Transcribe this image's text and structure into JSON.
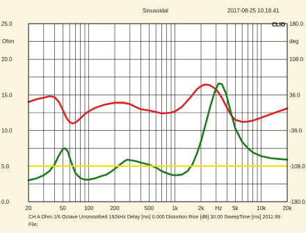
{
  "header": {
    "title": "Sinusoidal",
    "timestamp": "2017-08-25 10.18.41",
    "brand": "CLIO"
  },
  "footer": {
    "line1": "CH A   Ohm   1/6 Octave   Unsmoothed   192kHz   Delay [ms] 0.000   Distortion Rise [dB] 30.00   SweepTime [ms] 2011.99",
    "line2": "File:"
  },
  "colors": {
    "background": "#fbf6df",
    "plot": "#ffffff",
    "grid": "#111111",
    "impedance": "#e02020",
    "phase": "#1e7a1e",
    "reference": "#f0e000"
  },
  "chart_data": {
    "type": "line",
    "title": "Sinusoidal",
    "x_scale": "log",
    "xlim": [
      20,
      20000
    ],
    "x_ticks": [
      {
        "v": 20,
        "label": "20"
      },
      {
        "v": 50,
        "label": "50"
      },
      {
        "v": 100,
        "label": "100"
      },
      {
        "v": 200,
        "label": "200"
      },
      {
        "v": 500,
        "label": "500"
      },
      {
        "v": 1000,
        "label": "1k"
      },
      {
        "v": 2000,
        "label": "2k"
      },
      {
        "v": 3200,
        "label": "Hz"
      },
      {
        "v": 5000,
        "label": "5k"
      },
      {
        "v": 10000,
        "label": "10k"
      },
      {
        "v": 20000,
        "label": "20k"
      }
    ],
    "y_left": {
      "unit": "Ohm",
      "range": [
        0,
        25
      ],
      "ticks": [
        {
          "v": 0,
          "label": "0.0"
        },
        {
          "v": 5,
          "label": "5.0"
        },
        {
          "v": 10,
          "label": "10.0"
        },
        {
          "v": 15,
          "label": "15.0"
        },
        {
          "v": 20,
          "label": "20.0"
        },
        {
          "v": 25,
          "label": "25.0"
        }
      ]
    },
    "y_right": {
      "unit": "deg",
      "range": [
        -180,
        180
      ],
      "ticks": [
        {
          "v": -180,
          "label": "-180.0"
        },
        {
          "v": -108,
          "label": "-108.0"
        },
        {
          "v": -36,
          "label": "-36.0"
        },
        {
          "v": 36,
          "label": "36.0"
        },
        {
          "v": 108,
          "label": "108.0"
        },
        {
          "v": 180,
          "label": "180.0"
        }
      ]
    },
    "grid": true,
    "series": [
      {
        "color": "#e02020",
        "points": [
          [
            20,
            14.0
          ],
          [
            25,
            14.4
          ],
          [
            30,
            14.6
          ],
          [
            35,
            14.8
          ],
          [
            40,
            14.7
          ],
          [
            45,
            14.0
          ],
          [
            50,
            12.9
          ],
          [
            55,
            11.8
          ],
          [
            60,
            11.15
          ],
          [
            65,
            11.0
          ],
          [
            70,
            11.1
          ],
          [
            80,
            11.7
          ],
          [
            90,
            12.3
          ],
          [
            100,
            12.7
          ],
          [
            120,
            13.2
          ],
          [
            150,
            13.6
          ],
          [
            200,
            13.9
          ],
          [
            250,
            13.9
          ],
          [
            300,
            13.7
          ],
          [
            350,
            13.3
          ],
          [
            400,
            13.0
          ],
          [
            500,
            12.8
          ],
          [
            600,
            12.6
          ],
          [
            700,
            12.4
          ],
          [
            800,
            12.45
          ],
          [
            900,
            12.5
          ],
          [
            1000,
            12.7
          ],
          [
            1200,
            13.3
          ],
          [
            1500,
            14.6
          ],
          [
            1800,
            15.8
          ],
          [
            2000,
            16.2
          ],
          [
            2200,
            16.45
          ],
          [
            2500,
            16.4
          ],
          [
            3000,
            15.8
          ],
          [
            3500,
            14.6
          ],
          [
            4000,
            13.2
          ],
          [
            4500,
            12.1
          ],
          [
            5000,
            11.5
          ],
          [
            6000,
            11.2
          ],
          [
            7000,
            11.25
          ],
          [
            8000,
            11.4
          ],
          [
            10000,
            11.8
          ],
          [
            13000,
            12.3
          ],
          [
            16000,
            12.7
          ],
          [
            20000,
            13.1
          ]
        ]
      },
      {
        "color": "#1e7a1e",
        "points": [
          [
            20,
            3.0
          ],
          [
            25,
            3.3
          ],
          [
            30,
            3.7
          ],
          [
            35,
            4.3
          ],
          [
            40,
            5.2
          ],
          [
            45,
            6.5
          ],
          [
            50,
            7.4
          ],
          [
            53,
            7.5
          ],
          [
            57,
            7.1
          ],
          [
            60,
            6.2
          ],
          [
            65,
            5.0
          ],
          [
            70,
            4.0
          ],
          [
            80,
            3.3
          ],
          [
            90,
            3.1
          ],
          [
            100,
            3.1
          ],
          [
            120,
            3.3
          ],
          [
            140,
            3.6
          ],
          [
            160,
            3.8
          ],
          [
            180,
            4.2
          ],
          [
            200,
            4.6
          ],
          [
            230,
            5.2
          ],
          [
            260,
            5.7
          ],
          [
            280,
            5.9
          ],
          [
            300,
            5.85
          ],
          [
            350,
            5.7
          ],
          [
            400,
            5.5
          ],
          [
            500,
            5.2
          ],
          [
            600,
            4.8
          ],
          [
            700,
            4.3
          ],
          [
            800,
            4.0
          ],
          [
            900,
            3.8
          ],
          [
            1000,
            3.7
          ],
          [
            1200,
            3.8
          ],
          [
            1400,
            4.3
          ],
          [
            1600,
            5.3
          ],
          [
            1800,
            6.8
          ],
          [
            2000,
            8.5
          ],
          [
            2300,
            11.2
          ],
          [
            2600,
            13.6
          ],
          [
            2900,
            15.5
          ],
          [
            3200,
            16.6
          ],
          [
            3500,
            16.5
          ],
          [
            3900,
            15.2
          ],
          [
            4300,
            13.2
          ],
          [
            5000,
            10.3
          ],
          [
            6000,
            8.4
          ],
          [
            7000,
            7.5
          ],
          [
            8000,
            6.9
          ],
          [
            10000,
            6.4
          ],
          [
            13000,
            6.1
          ],
          [
            16000,
            6.0
          ],
          [
            20000,
            5.9
          ]
        ]
      },
      {
        "color": "#f0e000",
        "points": [
          [
            20,
            5.0
          ],
          [
            20000,
            5.0
          ]
        ]
      }
    ]
  }
}
